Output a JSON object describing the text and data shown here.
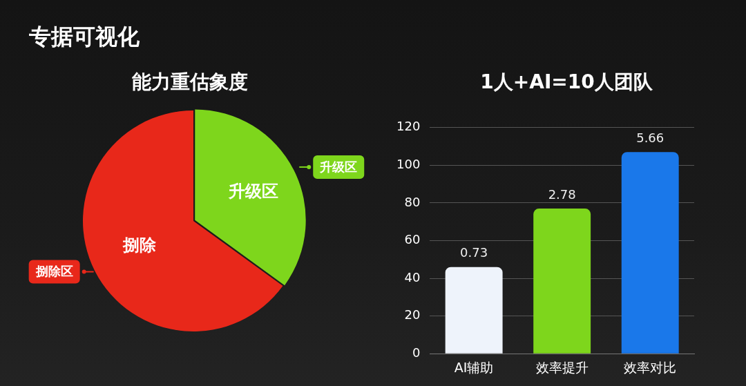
{
  "chart_data": [
    {
      "type": "pie",
      "title": "能力重估象度",
      "categories": [
        "升级区",
        "捌除区"
      ],
      "values": [
        35,
        65
      ],
      "colors": [
        "#7ed61c",
        "#e8281a"
      ],
      "value_labels": [
        "升级区",
        "捌除"
      ],
      "annotations": [
        "专据可视化"
      ]
    },
    {
      "type": "bar",
      "title": "1人+AI=10人团队",
      "categories": [
        "AI辅助",
        "效率提升",
        "效率对比"
      ],
      "values": [
        46,
        77,
        107
      ],
      "colors": [
        "#eef3fb",
        "#7ed61c",
        "#1a78ea"
      ],
      "annotations": [
        {
          "text": "0.73",
          "x": "AI辅助",
          "y": 46
        },
        {
          "text": "2.78",
          "x": "效率提升",
          "y": 77
        },
        {
          "text": "5.66",
          "x": "效率对比",
          "y": 107
        }
      ],
      "ylim": [
        0,
        120
      ],
      "yticks": [
        0,
        20,
        40,
        60,
        80,
        100,
        120
      ],
      "grid": "y"
    }
  ]
}
